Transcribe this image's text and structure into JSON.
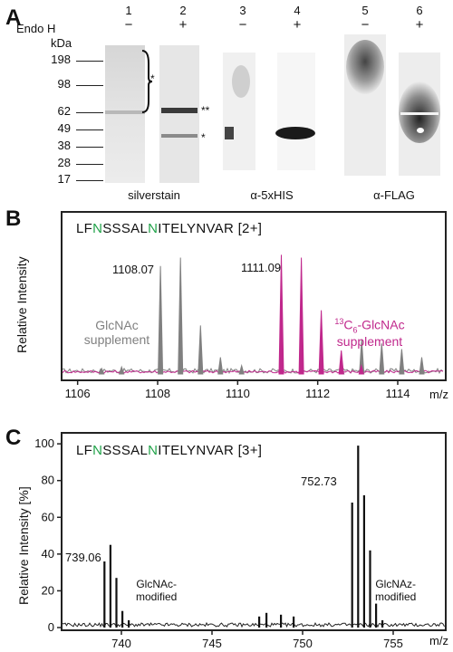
{
  "panel_a": {
    "letter": "A",
    "endo_label": "Endo H",
    "lanes": [
      "1",
      "2",
      "3",
      "4",
      "5",
      "6"
    ],
    "signs": [
      "−",
      "+",
      "−",
      "+",
      "−",
      "+"
    ],
    "kda_label": "kDa",
    "markers": [
      "198",
      "98",
      "62",
      "49",
      "38",
      "28",
      "17"
    ],
    "blot_labels": [
      "silverstain",
      "α-5xHIS",
      "α-FLAG"
    ],
    "band_marks": {
      "single": "*",
      "double": "**",
      "lower": "*"
    }
  },
  "panel_b": {
    "letter": "B",
    "peptide": {
      "pre": "LF",
      "n1": "N",
      "mid": "SSSAL",
      "n2": "N",
      "post": "ITELYNVAR",
      "charge": "[2+]"
    },
    "ylabel": "Relative Intensity",
    "xlabel": "m/z",
    "colors": {
      "glcnac": "#808080",
      "c13": "#c0288c",
      "n_green": "#22a34a"
    },
    "peak_labels": [
      "1108.07",
      "1111.09"
    ],
    "series_labels": {
      "glcnac_1": "GlcNAc",
      "glcnac_2": "supplement",
      "c13_pre": "13",
      "c13_sub": "C",
      "c13_sub2": "6",
      "c13_post": "-GlcNAc",
      "c13_2": "supplement"
    }
  },
  "panel_c": {
    "letter": "C",
    "peptide": {
      "pre": "LF",
      "n1": "N",
      "mid": "SSSAL",
      "n2": "N",
      "post": "ITELYNVAR",
      "charge": "[3+]"
    },
    "ylabel": "Relative Intensity [%]",
    "xlabel": "m/z",
    "peak_labels": [
      "739.06",
      "752.73"
    ],
    "group_labels": {
      "a1": "GlcNAc-",
      "a2": "modified",
      "b1": "GlcNAz-",
      "b2": "modified"
    }
  },
  "chart_data": [
    {
      "type": "line",
      "xlabel": "m/z",
      "ylabel": "Relative Intensity",
      "xlim": [
        1105.6,
        1115.2
      ],
      "x_ticks": [
        1106,
        1108,
        1110,
        1112,
        1114
      ],
      "series": [
        {
          "name": "GlcNAc supplement",
          "peaks": [
            [
              1106.6,
              0.04
            ],
            [
              1107.1,
              0.05
            ],
            [
              1108.07,
              0.78
            ],
            [
              1108.57,
              0.84
            ],
            [
              1109.07,
              0.35
            ],
            [
              1109.57,
              0.12
            ],
            [
              1110.1,
              0.06
            ],
            [
              1112.6,
              0.06
            ],
            [
              1113.1,
              0.25
            ],
            [
              1113.6,
              0.22
            ],
            [
              1114.1,
              0.18
            ],
            [
              1114.6,
              0.12
            ]
          ]
        },
        {
          "name": "13C6-GlcNAc supplement",
          "peaks": [
            [
              1111.09,
              0.86
            ],
            [
              1111.59,
              0.84
            ],
            [
              1112.09,
              0.46
            ],
            [
              1112.59,
              0.17
            ],
            [
              1113.09,
              0.06
            ]
          ]
        }
      ]
    },
    {
      "type": "line",
      "xlabel": "m/z",
      "ylabel": "Relative Intensity [%]",
      "xlim": [
        736.7,
        757.9
      ],
      "ylim": [
        0,
        104
      ],
      "x_ticks": [
        740,
        745,
        750,
        755
      ],
      "y_ticks": [
        0,
        20,
        40,
        60,
        80,
        100
      ],
      "series": [
        {
          "name": "",
          "peaks": [
            [
              739.06,
              36
            ],
            [
              739.39,
              45
            ],
            [
              739.72,
              27
            ],
            [
              740.05,
              9
            ],
            [
              740.4,
              4
            ],
            [
              747.6,
              6
            ],
            [
              748.0,
              8
            ],
            [
              748.8,
              7
            ],
            [
              749.5,
              6
            ],
            [
              752.73,
              68
            ],
            [
              753.06,
              99
            ],
            [
              753.39,
              72
            ],
            [
              753.72,
              42
            ],
            [
              754.05,
              13
            ],
            [
              754.4,
              4
            ]
          ]
        }
      ]
    }
  ]
}
